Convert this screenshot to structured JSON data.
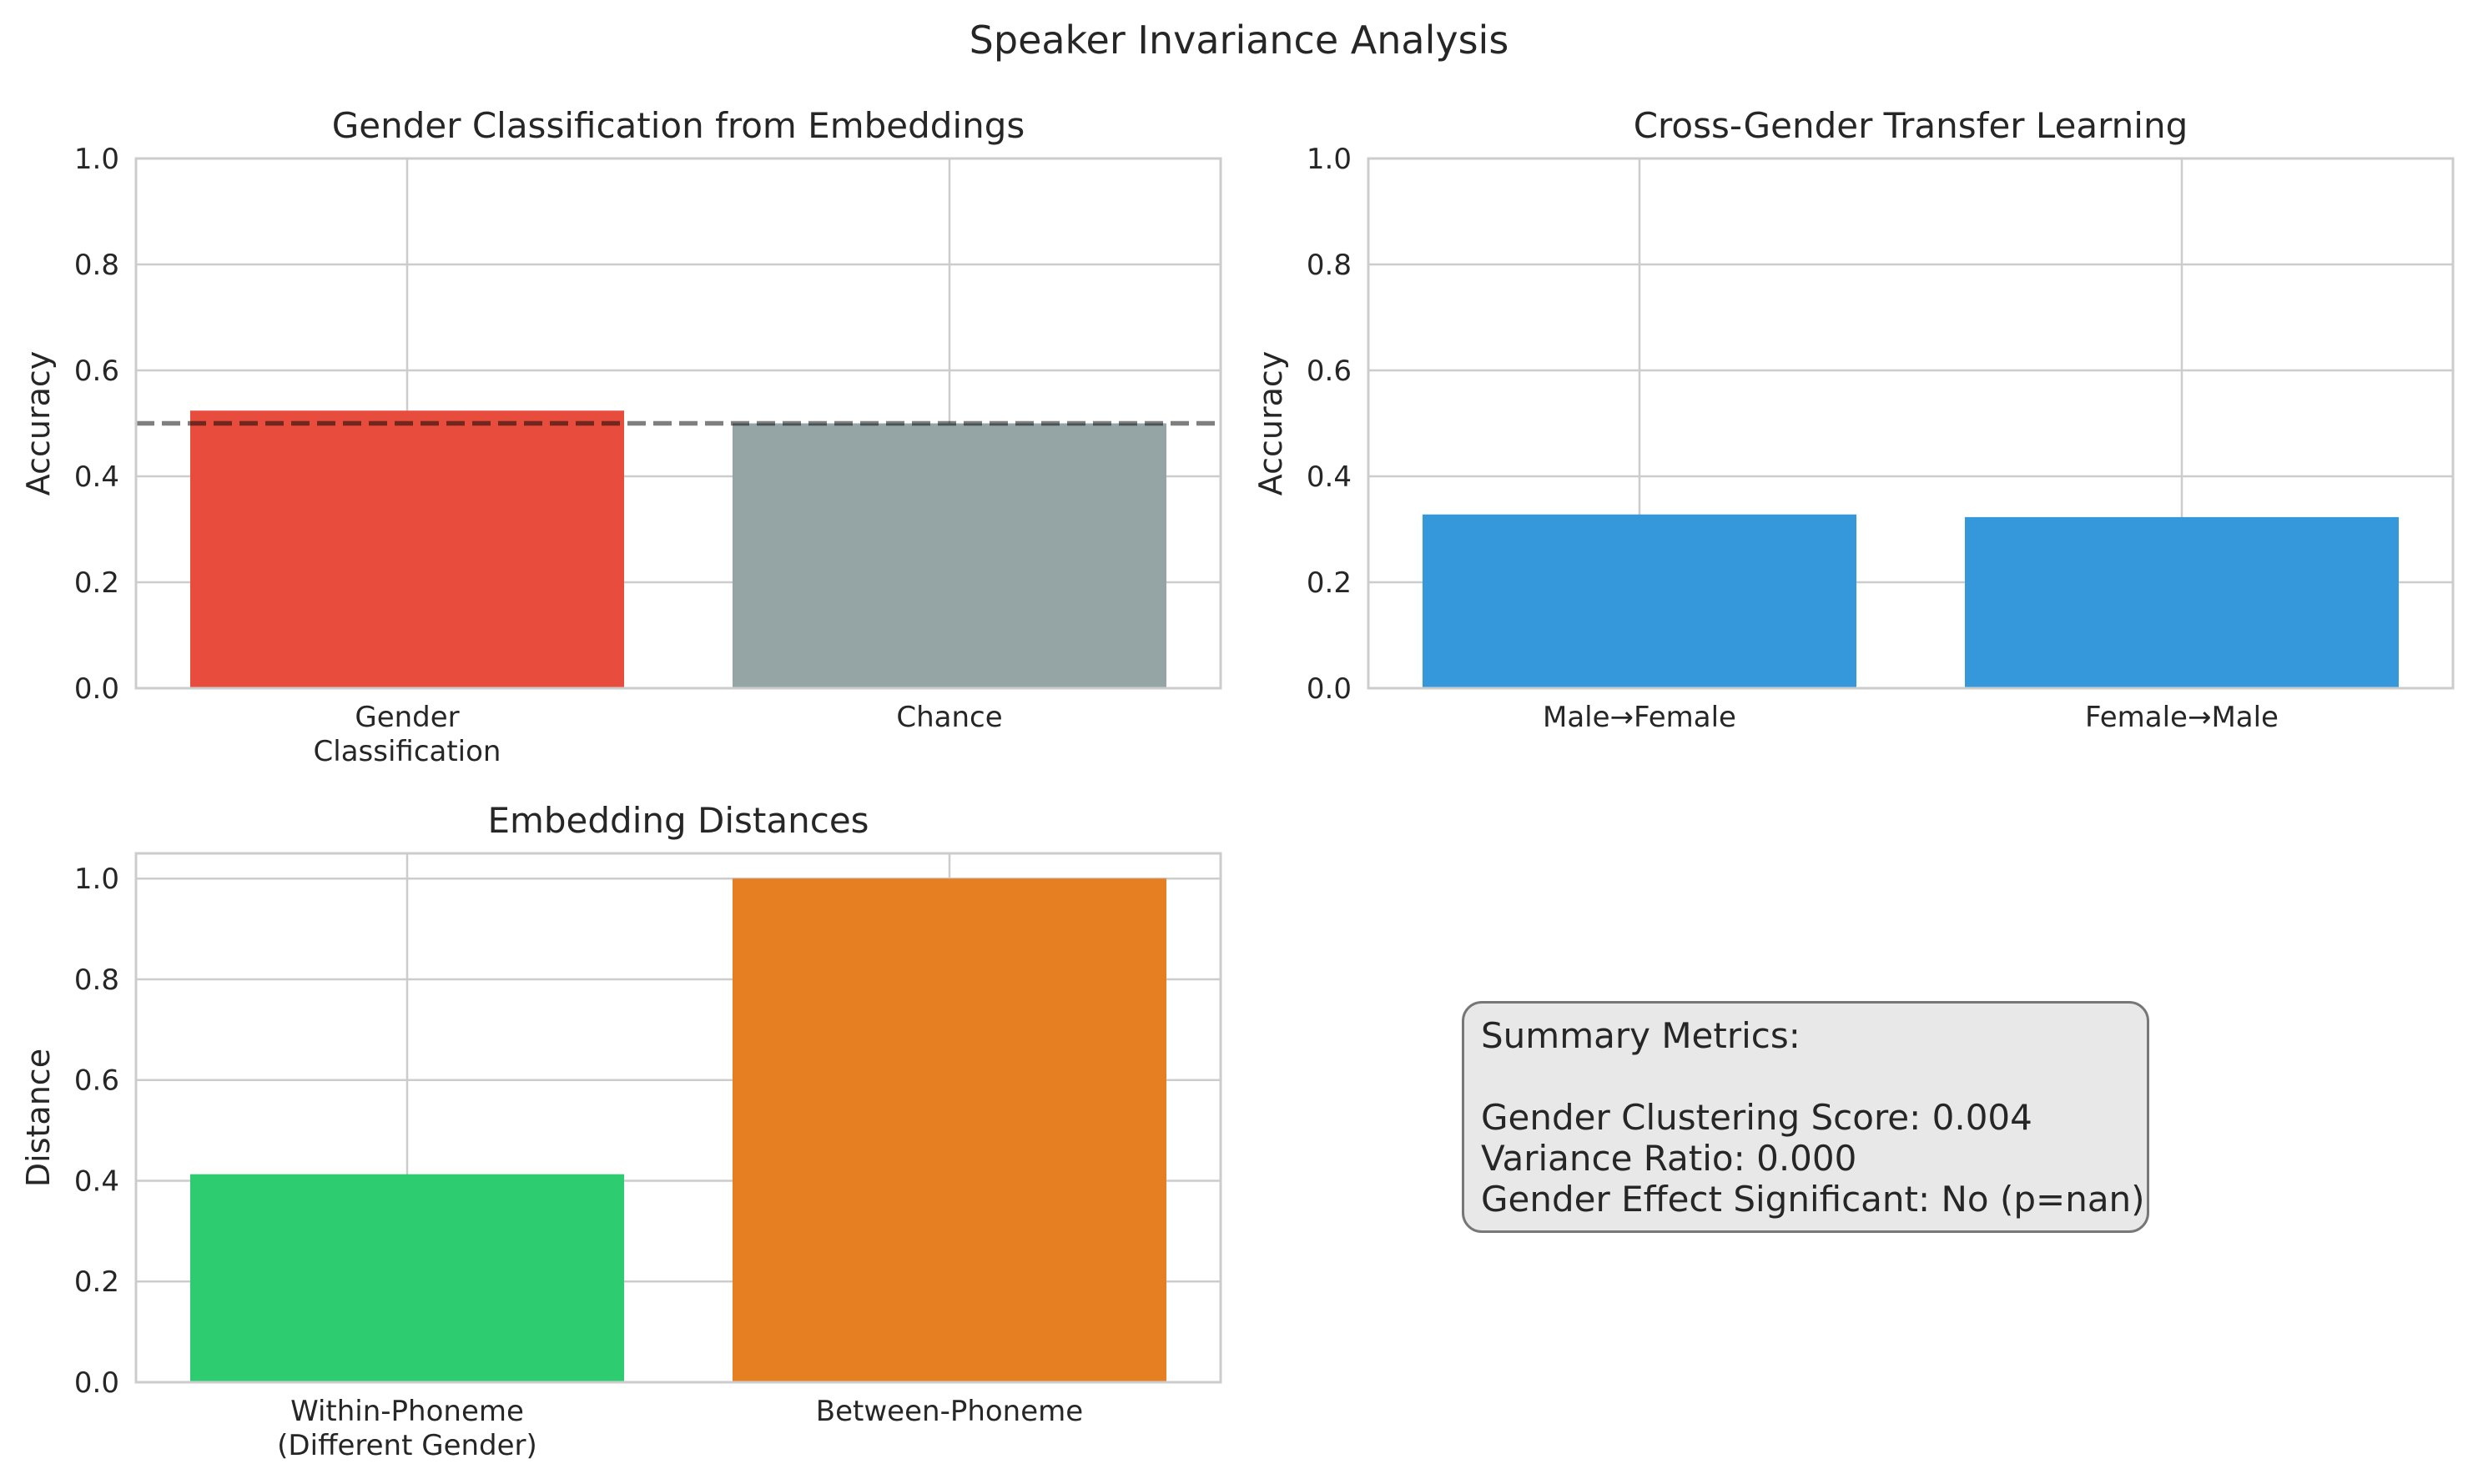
{
  "figure_title": "Speaker Invariance Analysis",
  "chart_data": [
    {
      "type": "bar",
      "title": "Gender Classification from Embeddings",
      "ylabel": "Accuracy",
      "ylim": [
        0,
        1.0
      ],
      "yticks": [
        "0.0",
        "0.2",
        "0.4",
        "0.6",
        "0.8",
        "1.0"
      ],
      "categories": [
        [
          "Gender",
          "Classification"
        ],
        [
          "Chance"
        ]
      ],
      "values": [
        0.524,
        0.5
      ],
      "colors": [
        "#e74c3c",
        "#95a5a6"
      ],
      "reference_line": {
        "value": 0.5,
        "style": "dashed",
        "color": "#000000"
      },
      "grid": true
    },
    {
      "type": "bar",
      "title": "Cross-Gender Transfer Learning",
      "ylabel": "Accuracy",
      "ylim": [
        0,
        1.0
      ],
      "yticks": [
        "0.0",
        "0.2",
        "0.4",
        "0.6",
        "0.8",
        "1.0"
      ],
      "categories": [
        [
          "Male→Female"
        ],
        [
          "Female→Male"
        ]
      ],
      "values": [
        0.328,
        0.323
      ],
      "colors": [
        "#3498db",
        "#3498db"
      ],
      "grid": true
    },
    {
      "type": "bar",
      "title": "Embedding Distances",
      "ylabel": "Distance",
      "ylim": [
        0,
        1.05
      ],
      "yticks": [
        "0.0",
        "0.2",
        "0.4",
        "0.6",
        "0.8",
        "1.0"
      ],
      "categories": [
        [
          "Within-Phoneme",
          "(Different Gender)"
        ],
        [
          "Between-Phoneme"
        ]
      ],
      "values": [
        0.413,
        1.0
      ],
      "colors": [
        "#2ecc71",
        "#e67e22"
      ],
      "grid": true
    }
  ],
  "summary": {
    "heading": "Summary Metrics:",
    "lines": [
      "Gender Clustering Score: 0.004",
      "Variance Ratio: 0.000",
      "Gender Effect Significant: No (p=nan)"
    ]
  }
}
